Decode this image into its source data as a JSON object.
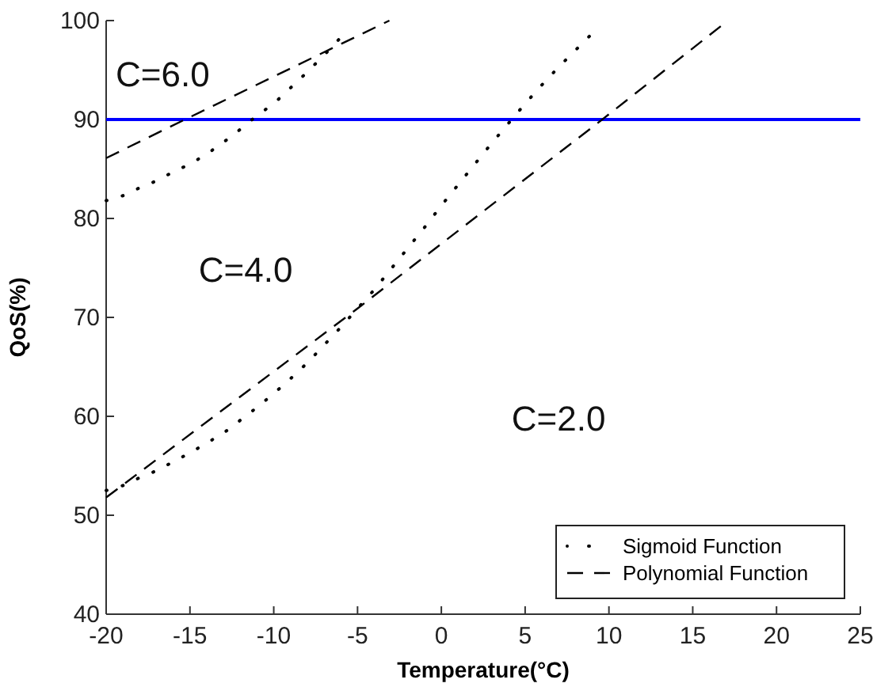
{
  "chart_data": {
    "type": "line",
    "xlabel": "Temperature(°C)",
    "ylabel": "QoS(%)",
    "xlim": [
      -20,
      25
    ],
    "ylim": [
      40,
      100
    ],
    "xticks": [
      -20,
      -15,
      -10,
      -5,
      0,
      5,
      10,
      15,
      20,
      25
    ],
    "yticks": [
      40,
      50,
      60,
      70,
      80,
      90,
      100
    ],
    "grid": false,
    "legend": "bottom right",
    "series": [
      {
        "name": "Sigmoid Function",
        "color": "#000000",
        "line_style": "dotted",
        "x": [
          -20,
          -19,
          -18,
          -17,
          -16,
          -15,
          -14,
          -13,
          -12,
          -11,
          -10,
          -9,
          -8,
          -7,
          -6
        ],
        "values": [
          81.8,
          82.3,
          83.1,
          83.8,
          84.7,
          85.5,
          86.5,
          87.7,
          89.0,
          90.4,
          91.6,
          93.2,
          94.8,
          96.5,
          98.3
        ]
      },
      {
        "name": "Polynomial Function",
        "color": "#000000",
        "line_style": "dashed",
        "x": [
          -20,
          -15.3,
          -3.1
        ],
        "values": [
          86.1,
          90,
          100
        ]
      },
      {
        "color": "#000000",
        "line_style": "dotted",
        "x": [
          -20,
          -19,
          -18,
          -17,
          -16,
          -15,
          -14,
          -13,
          -12,
          -11,
          -10,
          -9,
          -8,
          -7,
          -6,
          -5,
          -4,
          -3,
          -2,
          -1,
          0,
          1,
          2,
          3,
          4,
          5,
          6,
          7,
          8,
          9
        ],
        "values": [
          52.5,
          53,
          53.8,
          54.5,
          55.4,
          56.3,
          57.3,
          58.3,
          59.6,
          60.9,
          62.3,
          63.8,
          65.4,
          67.2,
          69,
          70.9,
          72.8,
          74.9,
          77.0,
          79.1,
          81.3,
          83.4,
          85.5,
          87.6,
          89.6,
          91.6,
          93.5,
          95.3,
          97.0,
          98.7
        ]
      },
      {
        "color": "#000000",
        "line_style": "dashed",
        "x": [
          -20,
          -5,
          9.6,
          17.1
        ],
        "values": [
          51.8,
          70.9,
          90,
          100
        ]
      }
    ],
    "ref_lines": [
      {
        "axis": "y",
        "value": 90,
        "color": "#0000ff"
      }
    ],
    "annotations": [
      "C=6.0",
      "C=4.0",
      "C=2.0"
    ]
  }
}
